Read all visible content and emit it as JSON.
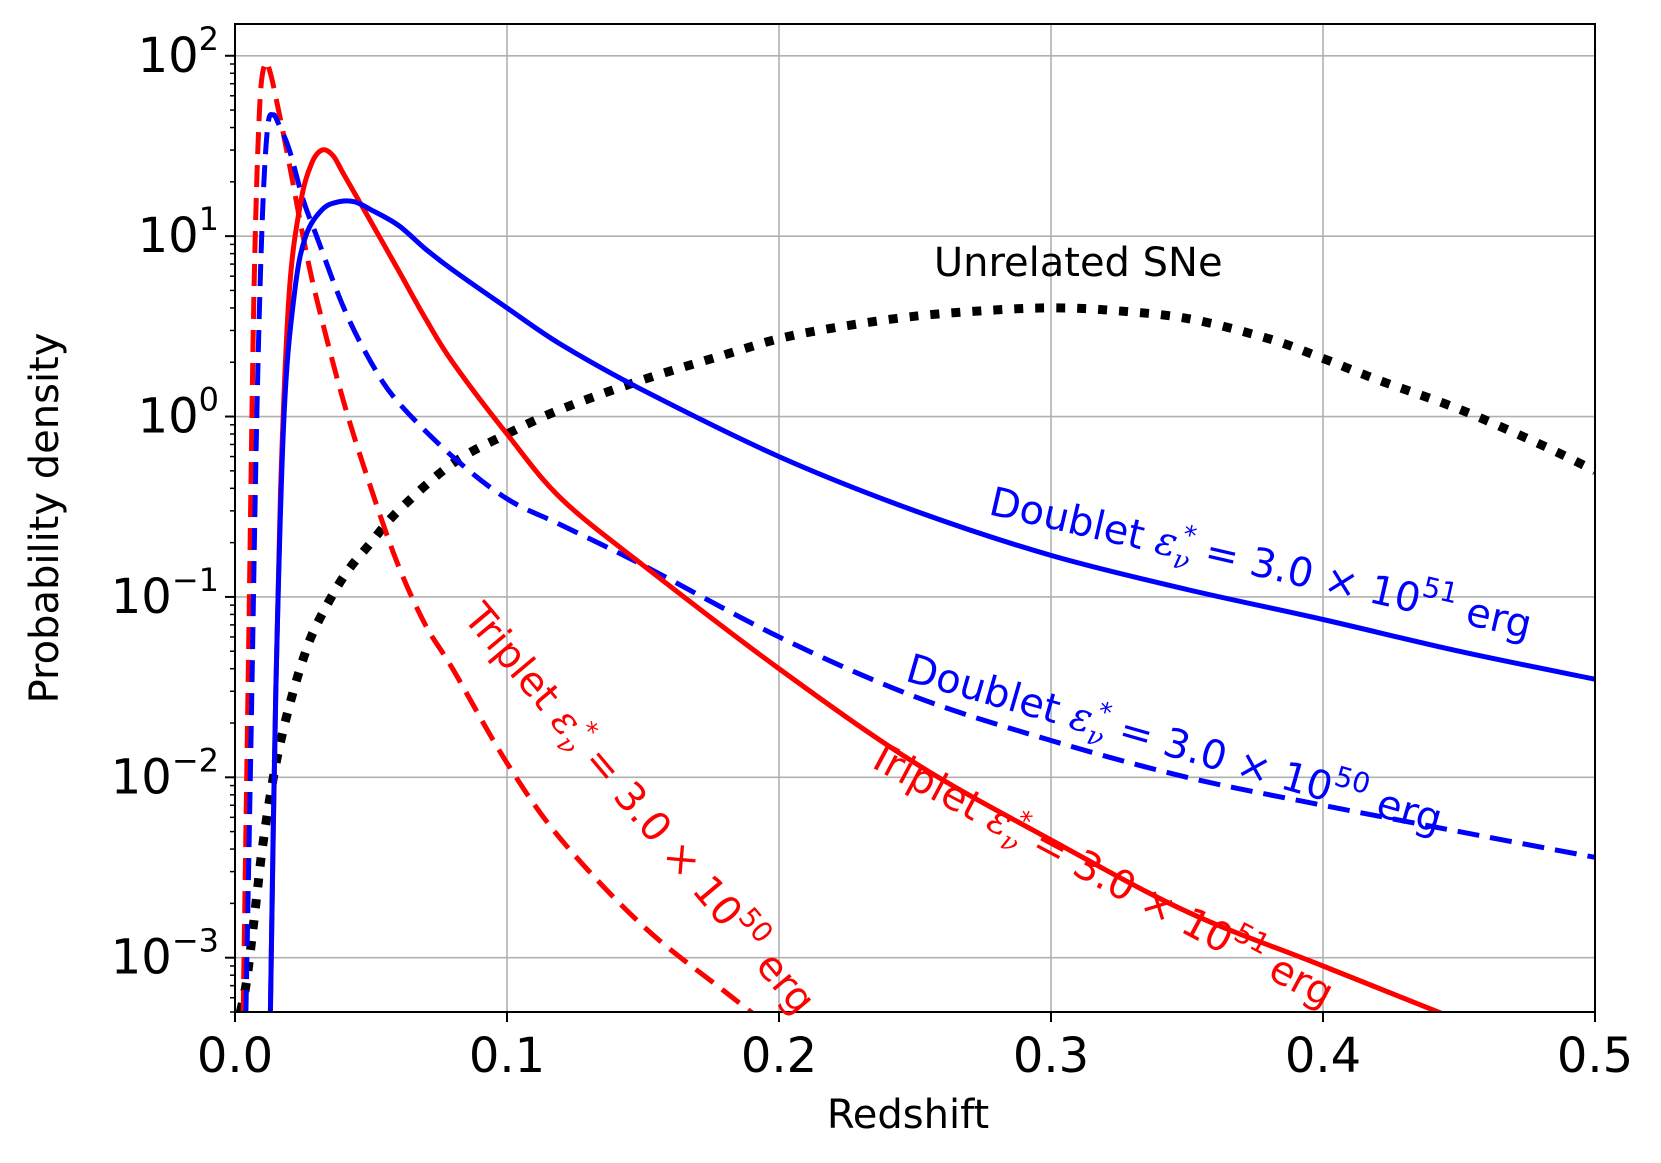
{
  "chart_data": {
    "type": "line",
    "title": "",
    "xlabel": "Redshift",
    "ylabel": "Probability density",
    "xlim": [
      0.0,
      0.5
    ],
    "ylim": [
      0.0005,
      150
    ],
    "yscale": "log",
    "grid": true,
    "x_ticks": [
      {
        "value": 0.0,
        "label": "0.0"
      },
      {
        "value": 0.1,
        "label": "0.1"
      },
      {
        "value": 0.2,
        "label": "0.2"
      },
      {
        "value": 0.3,
        "label": "0.3"
      },
      {
        "value": 0.4,
        "label": "0.4"
      },
      {
        "value": 0.5,
        "label": "0.5"
      }
    ],
    "y_ticks": [
      {
        "value": 100,
        "base": "10",
        "exp": "2"
      },
      {
        "value": 10,
        "base": "10",
        "exp": "1"
      },
      {
        "value": 1,
        "base": "10",
        "exp": "0"
      },
      {
        "value": 0.1,
        "base": "10",
        "exp": "−1"
      },
      {
        "value": 0.01,
        "base": "10",
        "exp": "−2"
      },
      {
        "value": 0.001,
        "base": "10",
        "exp": "−3"
      }
    ],
    "series": [
      {
        "name": "Doublet ε*ν = 3.0 × 10^51 erg",
        "color": "#0000ff",
        "style": "solid",
        "x": [
          0.013,
          0.015,
          0.018,
          0.022,
          0.026,
          0.032,
          0.038,
          0.044,
          0.05,
          0.06,
          0.07,
          0.08,
          0.1,
          0.12,
          0.15,
          0.2,
          0.25,
          0.3,
          0.35,
          0.4,
          0.45,
          0.5
        ],
        "y": [
          0.0005,
          0.03,
          1.0,
          5.0,
          10.0,
          14.0,
          15.5,
          15.5,
          14.0,
          11.5,
          8.5,
          6.5,
          4.0,
          2.5,
          1.4,
          0.6,
          0.3,
          0.17,
          0.11,
          0.075,
          0.05,
          0.035
        ]
      },
      {
        "name": "Doublet ε*ν = 3.0 × 10^50 erg",
        "color": "#0000ff",
        "style": "dashed",
        "x": [
          0.004,
          0.006,
          0.008,
          0.01,
          0.012,
          0.014,
          0.016,
          0.02,
          0.025,
          0.03,
          0.04,
          0.05,
          0.06,
          0.08,
          0.1,
          0.12,
          0.15,
          0.2,
          0.25,
          0.3,
          0.35,
          0.4,
          0.45,
          0.5
        ],
        "y": [
          0.0005,
          0.02,
          1.0,
          12.0,
          40.0,
          47.0,
          42.0,
          30.0,
          16.0,
          10.0,
          4.0,
          2.0,
          1.2,
          0.6,
          0.35,
          0.25,
          0.15,
          0.06,
          0.028,
          0.016,
          0.01,
          0.007,
          0.005,
          0.0036
        ]
      },
      {
        "name": "Triplet ε*ν = 3.0 × 10^51 erg",
        "color": "#ff0000",
        "style": "solid",
        "x": [
          0.013,
          0.015,
          0.017,
          0.02,
          0.024,
          0.028,
          0.032,
          0.036,
          0.04,
          0.05,
          0.06,
          0.07,
          0.08,
          0.1,
          0.12,
          0.15,
          0.2,
          0.25,
          0.3,
          0.35,
          0.4,
          0.45
        ],
        "y": [
          0.0005,
          0.03,
          0.5,
          5.0,
          15.0,
          25.0,
          30.0,
          28.0,
          22.0,
          12.0,
          6.5,
          3.5,
          2.0,
          0.8,
          0.35,
          0.15,
          0.04,
          0.012,
          0.0045,
          0.0018,
          0.0009,
          0.00045
        ]
      },
      {
        "name": "Triplet ε*ν = 3.0 × 10^50 erg",
        "color": "#ff0000",
        "style": "dashed",
        "x": [
          0.003,
          0.005,
          0.007,
          0.009,
          0.011,
          0.013,
          0.016,
          0.02,
          0.025,
          0.03,
          0.04,
          0.05,
          0.06,
          0.07,
          0.08,
          0.1,
          0.12,
          0.15,
          0.18,
          0.2
        ],
        "y": [
          0.0005,
          0.05,
          5.0,
          50.0,
          90.0,
          80.0,
          50.0,
          25.0,
          10.0,
          4.5,
          1.2,
          0.4,
          0.15,
          0.07,
          0.04,
          0.012,
          0.0045,
          0.0015,
          0.00065,
          0.00038
        ]
      },
      {
        "name": "Unrelated SNe",
        "color": "#000000",
        "style": "dotted",
        "x": [
          0.002,
          0.004,
          0.006,
          0.008,
          0.01,
          0.013,
          0.016,
          0.02,
          0.025,
          0.03,
          0.04,
          0.05,
          0.06,
          0.08,
          0.1,
          0.12,
          0.15,
          0.18,
          0.2,
          0.22,
          0.25,
          0.28,
          0.3,
          0.32,
          0.35,
          0.38,
          0.4,
          0.42,
          0.45,
          0.48,
          0.5
        ],
        "y": [
          0.0005,
          0.0007,
          0.0012,
          0.0022,
          0.004,
          0.008,
          0.014,
          0.025,
          0.045,
          0.07,
          0.13,
          0.2,
          0.3,
          0.55,
          0.8,
          1.1,
          1.6,
          2.2,
          2.7,
          3.1,
          3.6,
          3.9,
          4.0,
          3.9,
          3.5,
          2.7,
          2.1,
          1.6,
          1.1,
          0.7,
          0.5
        ]
      }
    ],
    "annotations": [
      {
        "id": "unrelated",
        "text": "Unrelated SNe",
        "color": "#000000",
        "x": 0.31,
        "y": 6.0,
        "rotate": 0
      },
      {
        "id": "doublet51",
        "prefix": "Doublet ",
        "mid": " = 3.0 × 10",
        "exp": "51",
        "suffix": " erg",
        "color": "#0000ff",
        "x": 0.376,
        "y": 0.13,
        "rotate": 13
      },
      {
        "id": "doublet50",
        "prefix": "Doublet ",
        "mid": " = 3.0 × 10",
        "exp": "50",
        "suffix": " erg",
        "color": "#0000ff",
        "x": 0.344,
        "y": 0.013,
        "rotate": 16
      },
      {
        "id": "triplet51",
        "prefix": "Triplet ",
        "mid": " = 3.0 × 10",
        "exp": "51",
        "suffix": " erg",
        "color": "#ff0000",
        "x": 0.316,
        "y": 0.0025,
        "rotate": 28
      },
      {
        "id": "triplet50",
        "prefix": "Triplet ",
        "mid": " = 3.0 × 10",
        "exp": "50",
        "suffix": " erg",
        "color": "#ff0000",
        "x": 0.145,
        "y": 0.006,
        "rotate": 50
      }
    ]
  }
}
